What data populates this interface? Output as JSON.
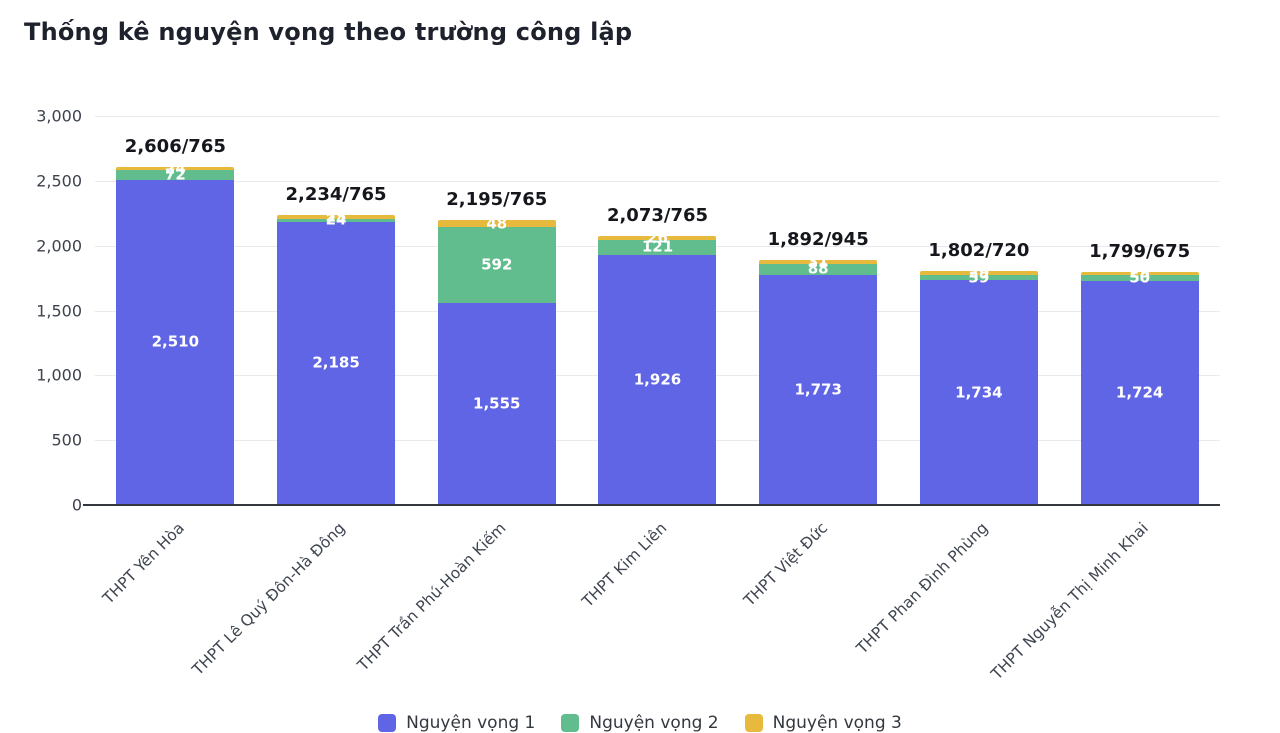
{
  "title": "Thống kê nguyện vọng theo trường công lập",
  "colors": {
    "nv1": "#6065e5",
    "nv2": "#62bd8e",
    "nv3": "#e7b93c",
    "grid": "#e8eaed",
    "axis": "#34373d",
    "total_label": "#15171c",
    "tick_label": "#3d434d"
  },
  "chart_data": {
    "type": "bar",
    "stacked": true,
    "title": "Thống kê nguyện vọng theo trường công lập",
    "categories": [
      "THPT Yên Hòa",
      "THPT Lê Quý Đôn-Hà Đông",
      "THPT Trần Phú-Hoàn Kiếm",
      "THPT Kim Liên",
      "THPT Việt Đức",
      "THPT Phan Đình Phùng",
      "THPT Nguyễn Thị Minh Khai"
    ],
    "series": [
      {
        "name": "Nguyện vọng 1",
        "color": "#6065e5",
        "values": [
          2510,
          2185,
          1555,
          1926,
          1773,
          1734,
          1724
        ]
      },
      {
        "name": "Nguyện vọng 2",
        "color": "#62bd8e",
        "values": [
          72,
          24,
          592,
          121,
          88,
          39,
          50
        ]
      },
      {
        "name": "Nguyện vọng 3",
        "color": "#e7b93c",
        "values": [
          24,
          25,
          48,
          26,
          31,
          29,
          25
        ]
      }
    ],
    "totals_labels": [
      "2,606/765",
      "2,234/765",
      "2,195/765",
      "2,073/765",
      "1,892/945",
      "1,802/720",
      "1,799/675"
    ],
    "xlabel": "",
    "ylabel": "",
    "ylim": [
      0,
      3000
    ],
    "yticks": [
      0,
      500,
      1000,
      1500,
      2000,
      2500,
      3000
    ],
    "grid": true,
    "legend_position": "bottom"
  },
  "legend": {
    "items": [
      {
        "label": "Nguyện vọng 1",
        "color": "#6065e5"
      },
      {
        "label": "Nguyện vọng 2",
        "color": "#62bd8e"
      },
      {
        "label": "Nguyện vọng 3",
        "color": "#e7b93c"
      }
    ]
  }
}
